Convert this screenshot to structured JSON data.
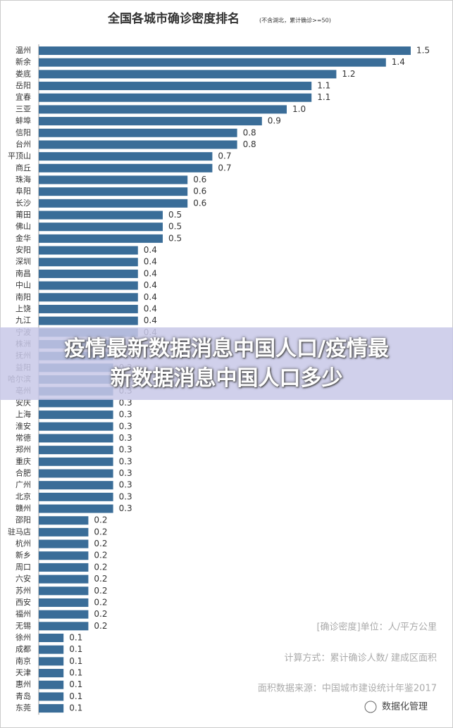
{
  "chart_data": {
    "type": "bar",
    "orientation": "horizontal",
    "title": "全国各城市确诊密度排名",
    "subtitle": "(不含湖北，累计确诊>=50)",
    "categories": [
      "温州",
      "新余",
      "娄底",
      "岳阳",
      "宜春",
      "三亚",
      "蚌埠",
      "信阳",
      "台州",
      "平顶山",
      "商丘",
      "珠海",
      "阜阳",
      "长沙",
      "莆田",
      "佛山",
      "金华",
      "安阳",
      "深圳",
      "南昌",
      "中山",
      "南阳",
      "上饶",
      "九江",
      "宁波",
      "株洲",
      "抚州",
      "益阳",
      "哈尔滨",
      "亳州",
      "安庆",
      "上海",
      "淮安",
      "常德",
      "郑州",
      "重庆",
      "合肥",
      "广州",
      "北京",
      "赣州",
      "邵阳",
      "驻马店",
      "杭州",
      "新乡",
      "周口",
      "六安",
      "苏州",
      "西安",
      "福州",
      "无锡",
      "徐州",
      "成都",
      "南京",
      "天津",
      "惠州",
      "青岛",
      "东莞"
    ],
    "values": [
      1.5,
      1.4,
      1.2,
      1.1,
      1.1,
      1.0,
      0.9,
      0.8,
      0.8,
      0.7,
      0.7,
      0.6,
      0.6,
      0.6,
      0.5,
      0.5,
      0.5,
      0.4,
      0.4,
      0.4,
      0.4,
      0.4,
      0.4,
      0.4,
      0.4,
      0.3,
      0.3,
      0.3,
      0.3,
      0.3,
      0.3,
      0.3,
      0.3,
      0.3,
      0.3,
      0.3,
      0.3,
      0.3,
      0.3,
      0.3,
      0.2,
      0.2,
      0.2,
      0.2,
      0.2,
      0.2,
      0.2,
      0.2,
      0.2,
      0.2,
      0.1,
      0.1,
      0.1,
      0.1,
      0.1,
      0.1,
      0.1
    ],
    "value_labels": [
      "1.5",
      "1.4",
      "1.2",
      "1.1",
      "1.1",
      "1.0",
      "0.9",
      "0.8",
      "0.8",
      "0.7",
      "0.7",
      "0.6",
      "0.6",
      "0.6",
      "0.5",
      "0.5",
      "0.5",
      "0.4",
      "0.4",
      "0.4",
      "0.4",
      "0.4",
      "0.4",
      "0.4",
      "0.4",
      "0.3",
      "0.3",
      "0.3",
      "0.3",
      "0.3",
      "0.3",
      "0.3",
      "0.3",
      "0.3",
      "0.3",
      "0.3",
      "0.3",
      "0.3",
      "0.3",
      "0.3",
      "0.2",
      "0.2",
      "0.2",
      "0.2",
      "0.2",
      "0.2",
      "0.2",
      "0.2",
      "0.2",
      "0.2",
      "0.1",
      "0.1",
      "0.1",
      "0.1",
      "0.1",
      "0.1",
      "0.1"
    ],
    "color": "#3a6d98",
    "xlim": [
      0,
      1.5
    ],
    "notes": [
      "[确诊密度]单位：人/平方公里",
      "计算方式：累计确诊人数/ 建成区面积",
      "面积数据来源：中国城市建设统计年鉴2017"
    ],
    "watermark": "数据化管理"
  },
  "banner": {
    "line1": "疫情最新数据消息中国人口/疫情最",
    "line2": "新数据消息中国人口多少"
  }
}
